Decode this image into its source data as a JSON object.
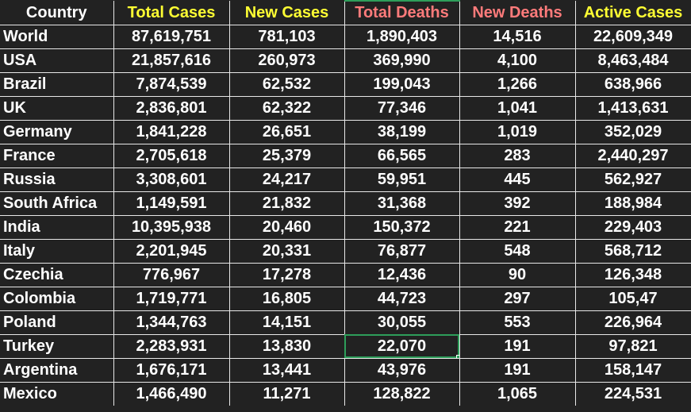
{
  "colors": {
    "background": "#222222",
    "gridline": "#e8e8e8",
    "header_country": "#ffffff",
    "header_cases": "#ffff33",
    "header_deaths": "#ff7b7b",
    "selection": "#2e9e5a",
    "cell_text": "#ffffff"
  },
  "headers": [
    "Country",
    "Total Cases",
    "New Cases",
    "Total Deaths",
    "New Deaths",
    "Active Cases"
  ],
  "rows": [
    [
      "World",
      "87,619,751",
      "781,103",
      "1,890,403",
      "14,516",
      "22,609,349"
    ],
    [
      "USA",
      "21,857,616",
      "260,973",
      "369,990",
      "4,100",
      "8,463,484"
    ],
    [
      "Brazil",
      "7,874,539",
      "62,532",
      "199,043",
      "1,266",
      "638,966"
    ],
    [
      "UK",
      "2,836,801",
      "62,322",
      "77,346",
      "1,041",
      "1,413,631"
    ],
    [
      "Germany",
      "1,841,228",
      "26,651",
      "38,199",
      "1,019",
      "352,029"
    ],
    [
      "France",
      "2,705,618",
      "25,379",
      "66,565",
      "283",
      "2,440,297"
    ],
    [
      "Russia",
      "3,308,601",
      "24,217",
      "59,951",
      "445",
      "562,927"
    ],
    [
      "South Africa",
      "1,149,591",
      "21,832",
      "31,368",
      "392",
      "188,984"
    ],
    [
      "India",
      "10,395,938",
      "20,460",
      "150,372",
      "221",
      "229,403"
    ],
    [
      "Italy",
      "2,201,945",
      "20,331",
      "76,877",
      "548",
      "568,712"
    ],
    [
      "Czechia",
      "776,967",
      "17,278",
      "12,436",
      "90",
      "126,348"
    ],
    [
      "Colombia",
      "1,719,771",
      "16,805",
      "44,723",
      "297",
      "105,47"
    ],
    [
      "Poland",
      "1,344,763",
      "14,151",
      "30,055",
      "553",
      "226,964"
    ],
    [
      "Turkey",
      "2,283,931",
      "13,830",
      "22,070",
      "191",
      "97,821"
    ],
    [
      "Argentina",
      "1,676,171",
      "13,441",
      "43,976",
      "191",
      "158,147"
    ],
    [
      "Mexico",
      "1,466,490",
      "11,271",
      "128,822",
      "1,065",
      "224,531"
    ]
  ]
}
